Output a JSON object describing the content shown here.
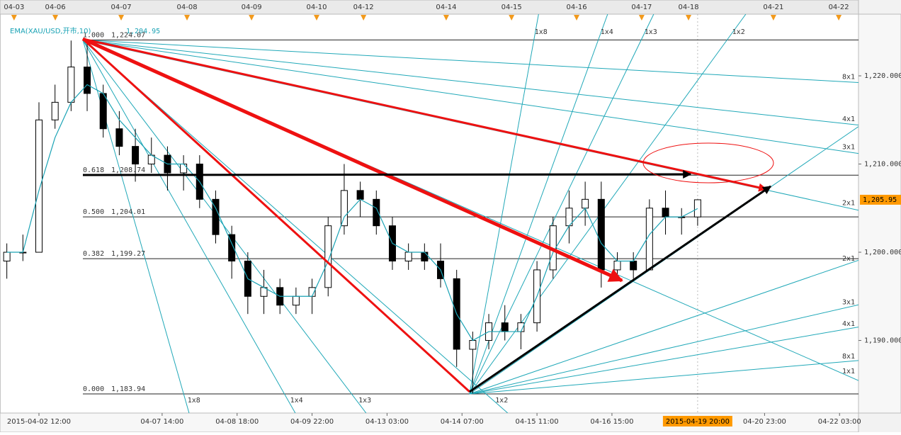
{
  "chart_data": {
    "type": "candlestick",
    "ema": {
      "name": "EMA(XAU/USD,开市,10)",
      "last_label": "1,204.95",
      "color": "#1aa3b5",
      "values": [
        1200,
        1200,
        1207,
        1213,
        1217,
        1219,
        1218,
        1215,
        1213,
        1211,
        1210,
        1210,
        1208,
        1205,
        1201,
        1197,
        1196,
        1195,
        1195,
        1195,
        1199,
        1204,
        1206,
        1205,
        1201,
        1200,
        1200,
        1198,
        1193,
        1190,
        1191,
        1191,
        1191,
        1195,
        1200,
        1203,
        1205,
        1201,
        1199,
        1199,
        1202,
        1204,
        1204,
        1204.95
      ]
    },
    "x": [
      -12,
      -6,
      0,
      6,
      12,
      18,
      24,
      30,
      36,
      42,
      48,
      54,
      60,
      66,
      72,
      78,
      84,
      90,
      96,
      102,
      108,
      114,
      120,
      126,
      132,
      138,
      144,
      150,
      156,
      162,
      168,
      174,
      180,
      186,
      192,
      198,
      204,
      210,
      216,
      222,
      228,
      234,
      240,
      246
    ],
    "open": [
      1199,
      1200,
      1200,
      1215,
      1217,
      1221,
      1218,
      1214,
      1212,
      1210,
      1211,
      1209,
      1210,
      1206,
      1202,
      1199,
      1195,
      1196,
      1194,
      1195,
      1196,
      1203,
      1207,
      1206,
      1203,
      1199,
      1200,
      1199,
      1197,
      1189,
      1190,
      1192,
      1191,
      1192,
      1198,
      1203,
      1205,
      1206,
      1198,
      1199,
      1198,
      1205,
      1204,
      1204
    ],
    "high": [
      1201,
      1202,
      1217,
      1219,
      1224,
      1224,
      1219,
      1216,
      1214,
      1213,
      1212,
      1211,
      1211,
      1207,
      1203,
      1200,
      1198,
      1197,
      1196,
      1197,
      1204,
      1210,
      1208,
      1207,
      1204,
      1201,
      1201,
      1201,
      1198,
      1191,
      1193,
      1194,
      1193,
      1199,
      1204,
      1207,
      1208,
      1208,
      1200,
      1200,
      1206,
      1207,
      1205,
      1206
    ],
    "low": [
      1197,
      1199,
      1200,
      1214,
      1216,
      1216,
      1213,
      1211,
      1208,
      1209,
      1207,
      1207,
      1205,
      1201,
      1197,
      1193,
      1193,
      1193,
      1193,
      1193,
      1195,
      1202,
      1204,
      1202,
      1198,
      1198,
      1198,
      1196,
      1187,
      1184,
      1189,
      1190,
      1189,
      1191,
      1197,
      1201,
      1203,
      1196,
      1197,
      1197,
      1198,
      1202,
      1202,
      1203
    ],
    "close": [
      1200,
      1200,
      1215,
      1217,
      1221,
      1218,
      1214,
      1212,
      1210,
      1211,
      1209,
      1210,
      1206,
      1202,
      1199,
      1195,
      1196,
      1194,
      1195,
      1196,
      1203,
      1207,
      1206,
      1203,
      1199,
      1200,
      1199,
      1197,
      1189,
      1190,
      1192,
      1191,
      1192,
      1198,
      1203,
      1205,
      1206,
      1198,
      1199,
      1198,
      1205,
      1204,
      1204,
      1205.95
    ],
    "candle_color": "#000000",
    "xlim": [
      -14.55,
      306.08
    ],
    "ylim": [
      1181.77,
      1226.99
    ],
    "xticks": [
      {
        "value": 0,
        "label": "2015-04-02 12:00"
      },
      {
        "value": 46,
        "label": "04-07 14:00"
      },
      {
        "value": 74,
        "label": "04-08 18:00"
      },
      {
        "value": 102,
        "label": "04-09 22:00"
      },
      {
        "value": 130,
        "label": "04-13 03:00"
      },
      {
        "value": 158,
        "label": "04-14 07:00"
      },
      {
        "value": 186,
        "label": "04-15 11:00"
      },
      {
        "value": 214,
        "label": "04-16 15:00"
      },
      {
        "value": 271,
        "label": "04-20 23:00"
      },
      {
        "value": 299,
        "label": "04-22 03:00"
      }
    ],
    "cursor": {
      "value": 246,
      "label": "2015-04-19 20:00"
    },
    "date_markers": [
      {
        "value": -9.3,
        "label": "04-03"
      },
      {
        "value": 6.1,
        "label": "04-06"
      },
      {
        "value": 30.7,
        "label": "04-07"
      },
      {
        "value": 55.3,
        "label": "04-08"
      },
      {
        "value": 79.4,
        "label": "04-09"
      },
      {
        "value": 103.7,
        "label": "04-10"
      },
      {
        "value": 121.2,
        "label": "04-12"
      },
      {
        "value": 152.1,
        "label": "04-14"
      },
      {
        "value": 176.5,
        "label": "04-15"
      },
      {
        "value": 200.8,
        "label": "04-16"
      },
      {
        "value": 225.1,
        "label": "04-17"
      },
      {
        "value": 242.6,
        "label": "04-18"
      },
      {
        "value": 274.3,
        "label": "04-21"
      },
      {
        "value": 298.7,
        "label": "04-22"
      }
    ],
    "yticks": [
      {
        "value": 1190,
        "label": "1,190.000"
      },
      {
        "value": 1200,
        "label": "1,200.000"
      },
      {
        "value": 1210,
        "label": "1,210.000"
      },
      {
        "value": 1220,
        "label": "1,220.000"
      }
    ],
    "current_price": {
      "value": 1205.95,
      "label": "1,205.95"
    },
    "fib": {
      "start_x": 16.4,
      "levels": [
        {
          "ratio": "1.000",
          "value": 1224.07,
          "label": "1,224.07"
        },
        {
          "ratio": "0.618",
          "value": 1208.74,
          "label": "1,208.74"
        },
        {
          "ratio": "0.500",
          "value": 1204.01,
          "label": "1,204.01"
        },
        {
          "ratio": "0.382",
          "value": 1199.27,
          "label": "1,199.27"
        },
        {
          "ratio": "0.000",
          "value": 1183.94,
          "label": "1,183.94"
        }
      ]
    },
    "fan_color": "#20a8b8",
    "fans": [
      {
        "origin_x": 16.4,
        "origin_y": 1224.07,
        "unit": 0.1333,
        "direction": -1,
        "lines": [
          {
            "slope": 8,
            "label": "1x8"
          },
          {
            "slope": 4,
            "label": "1x4"
          },
          {
            "slope": 3,
            "label": "1x3"
          },
          {
            "slope": 2,
            "label": "1x2"
          },
          {
            "slope": 1,
            "label": "1x1"
          },
          {
            "slope": 0.5,
            "label": "2x1"
          },
          {
            "slope": 0.3333,
            "label": "3x1"
          },
          {
            "slope": 0.25,
            "label": "4x1"
          },
          {
            "slope": 0.125,
            "label": "8x1"
          }
        ]
      },
      {
        "origin_x": 160.8,
        "origin_y": 1183.94,
        "unit": 0.2086,
        "direction": 1,
        "lines": [
          {
            "slope": 8,
            "label": "1x8"
          },
          {
            "slope": 4,
            "label": "1x4"
          },
          {
            "slope": 3,
            "label": "1x3"
          },
          {
            "slope": 2,
            "label": "1x2"
          },
          {
            "slope": 1,
            "label": null
          },
          {
            "slope": 0.5,
            "label": "2x1"
          },
          {
            "slope": 0.3333,
            "label": "3x1"
          },
          {
            "slope": 0.25,
            "label": "4x1"
          },
          {
            "slope": 0.125,
            "label": "8x1"
          }
        ]
      }
    ]
  }
}
